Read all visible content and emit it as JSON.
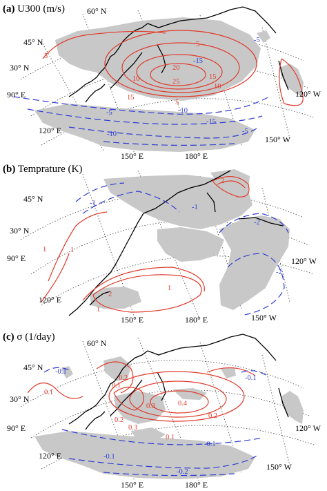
{
  "colors": {
    "land": "#c8c8c8",
    "positive_contour": "#e03a2a",
    "negative_contour": "#2d3bd6",
    "coast": "#000000",
    "grid": "#555555"
  },
  "lat_labels": [
    "60° N",
    "45° N",
    "30° N"
  ],
  "lon_labels_left": [
    "90° E",
    "120° E"
  ],
  "lon_labels_bottom": [
    "150° E",
    "180° E"
  ],
  "lon_labels_right": [
    "150° W",
    "120° W"
  ],
  "panels": [
    {
      "tag": "(a)",
      "title": "U300 (m/s)",
      "pos_labels": [
        "5",
        "10",
        "15",
        "20",
        "25",
        "10",
        "15",
        "5",
        "5",
        "-15",
        "-5"
      ],
      "neg_labels": [
        "-5",
        "-10",
        "-15",
        "-10",
        "-5"
      ]
    },
    {
      "tag": "(b)",
      "title": "Temprature (K)",
      "pos_labels": [
        "1",
        "2",
        "1",
        "1",
        "1",
        "2"
      ],
      "neg_labels": [
        "-1",
        "-2",
        "-1",
        "-2"
      ]
    },
    {
      "tag": "(c)",
      "title": "σ (1/day)",
      "pos_labels": [
        "0.1",
        "0.2",
        "0.1",
        "0.3",
        "0.4",
        "0.3",
        "0.1",
        "0.2",
        "0.2"
      ],
      "neg_labels": [
        "-0.1",
        "-0.1",
        "-0.1",
        "-0.2",
        "-0.1"
      ]
    }
  ]
}
